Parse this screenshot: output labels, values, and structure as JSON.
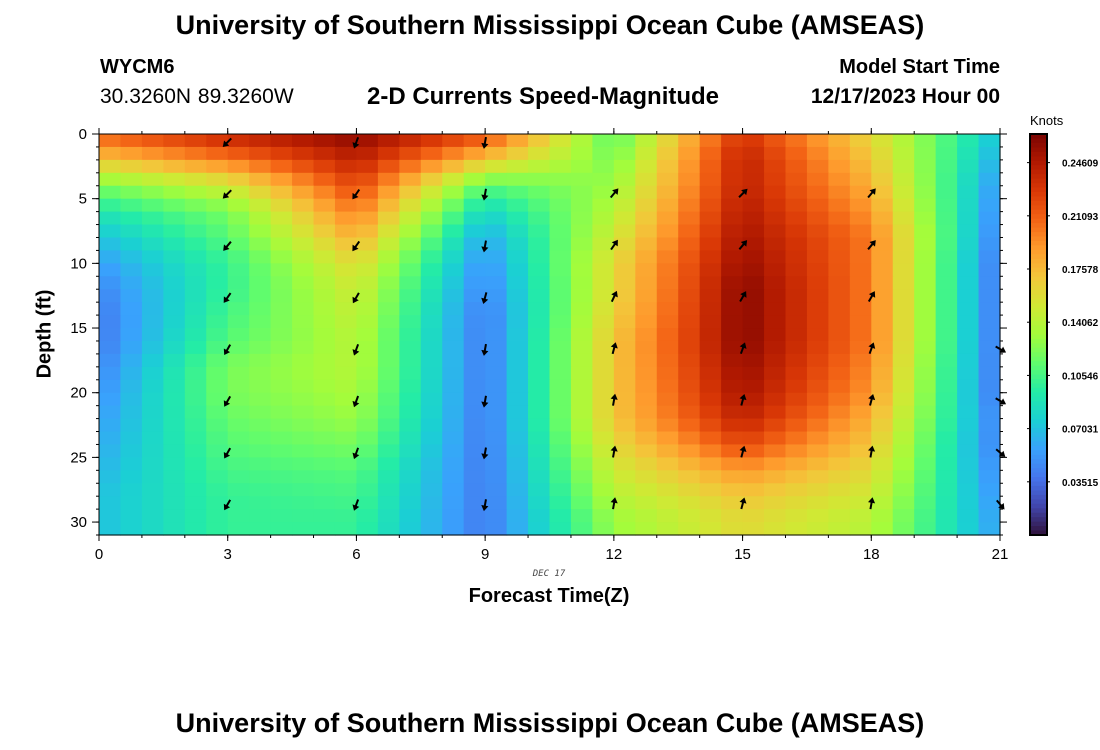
{
  "header": {
    "title": "University of Southern Mississippi Ocean Cube (AMSEAS)",
    "station_id": "WYCM6",
    "coordinates": "30.3260N  89.3260W",
    "subtitle": "2-D Currents Speed-Magnitude",
    "model_start_label": "Model Start Time",
    "model_start_value": "12/17/2023 Hour 00"
  },
  "footer": {
    "title": "University of Southern Mississippi Ocean Cube (AMSEAS)"
  },
  "chart_data": {
    "type": "heatmap",
    "title": "2-D Currents Speed-Magnitude",
    "xlabel": "Forecast Time(Z)",
    "ylabel": "Depth (ft)",
    "date_label": "DEC 17",
    "x_ticks": [
      "0",
      "3",
      "6",
      "9",
      "12",
      "15",
      "18",
      "21"
    ],
    "x_range": [
      0,
      21
    ],
    "y_ticks": [
      "0",
      "5",
      "10",
      "15",
      "20",
      "25",
      "30"
    ],
    "y_range": [
      0,
      31
    ],
    "y_inverted": true,
    "colorbar": {
      "unit": "Knots",
      "range": [
        0.0,
        0.265
      ],
      "tick_values": [
        0.03515,
        0.07031,
        0.10546,
        0.14062,
        0.17578,
        0.21093,
        0.24609
      ],
      "tick_labels": [
        "0.03515",
        "0.07031",
        "0.10546",
        "0.14062",
        "0.17578",
        "0.21093",
        "0.24609"
      ],
      "colormap": "turbo",
      "colors": [
        "#30123b",
        "#4145ab",
        "#4675ed",
        "#39a2fc",
        "#1bcfd4",
        "#24eca6",
        "#61fc6c",
        "#a4fc3b",
        "#d1e834",
        "#f3c63a",
        "#fe9b2d",
        "#f36315",
        "#d93806",
        "#b11901",
        "#7a0402"
      ]
    },
    "speed_profiles_by_time": {
      "times": [
        0,
        3,
        6,
        9,
        12,
        15,
        18,
        21
      ],
      "depths_ft": [
        0,
        2,
        4,
        6,
        8,
        10,
        12,
        14,
        16,
        18,
        20,
        22,
        24,
        26,
        28,
        30
      ],
      "speed_knots": [
        [
          0.21,
          0.17,
          0.12,
          0.09,
          0.07,
          0.055,
          0.045,
          0.04,
          0.04,
          0.045,
          0.05,
          0.055,
          0.06,
          0.065,
          0.07,
          0.07
        ],
        [
          0.24,
          0.2,
          0.15,
          0.12,
          0.11,
          0.1,
          0.1,
          0.105,
          0.11,
          0.12,
          0.12,
          0.115,
          0.11,
          0.105,
          0.1,
          0.1
        ],
        [
          0.26,
          0.24,
          0.22,
          0.2,
          0.18,
          0.16,
          0.15,
          0.145,
          0.14,
          0.14,
          0.135,
          0.13,
          0.12,
          0.11,
          0.105,
          0.1
        ],
        [
          0.22,
          0.17,
          0.11,
          0.08,
          0.06,
          0.05,
          0.045,
          0.04,
          0.04,
          0.04,
          0.04,
          0.04,
          0.04,
          0.04,
          0.04,
          0.04
        ],
        [
          0.11,
          0.12,
          0.13,
          0.14,
          0.15,
          0.16,
          0.16,
          0.165,
          0.17,
          0.17,
          0.17,
          0.17,
          0.16,
          0.15,
          0.14,
          0.13
        ],
        [
          0.23,
          0.24,
          0.24,
          0.245,
          0.25,
          0.255,
          0.26,
          0.26,
          0.26,
          0.255,
          0.25,
          0.24,
          0.22,
          0.19,
          0.17,
          0.16
        ],
        [
          0.16,
          0.17,
          0.18,
          0.19,
          0.2,
          0.2,
          0.2,
          0.2,
          0.2,
          0.195,
          0.19,
          0.18,
          0.17,
          0.16,
          0.15,
          0.14
        ],
        [
          0.07,
          0.06,
          0.05,
          0.045,
          0.04,
          0.035,
          0.035,
          0.035,
          0.035,
          0.035,
          0.035,
          0.04,
          0.04,
          0.045,
          0.05,
          0.055
        ]
      ]
    },
    "current_vectors": {
      "direction_convention": "arrow points toward flow; angles in degrees from north",
      "times": [
        3,
        6,
        9,
        12,
        15,
        18,
        21
      ],
      "depths_ft": [
        0,
        4,
        8,
        12,
        16,
        20,
        24,
        28
      ],
      "directions_deg": [
        [
          225,
          200,
          190,
          null,
          null,
          null,
          null
        ],
        [
          225,
          215,
          190,
          40,
          45,
          40,
          null
        ],
        [
          220,
          215,
          190,
          35,
          40,
          40,
          null
        ],
        [
          215,
          210,
          195,
          25,
          30,
          30,
          null
        ],
        [
          210,
          200,
          190,
          15,
          20,
          20,
          120
        ],
        [
          210,
          200,
          190,
          10,
          15,
          15,
          120
        ],
        [
          210,
          200,
          190,
          10,
          15,
          10,
          130
        ],
        [
          210,
          200,
          190,
          10,
          15,
          10,
          140
        ]
      ]
    }
  }
}
